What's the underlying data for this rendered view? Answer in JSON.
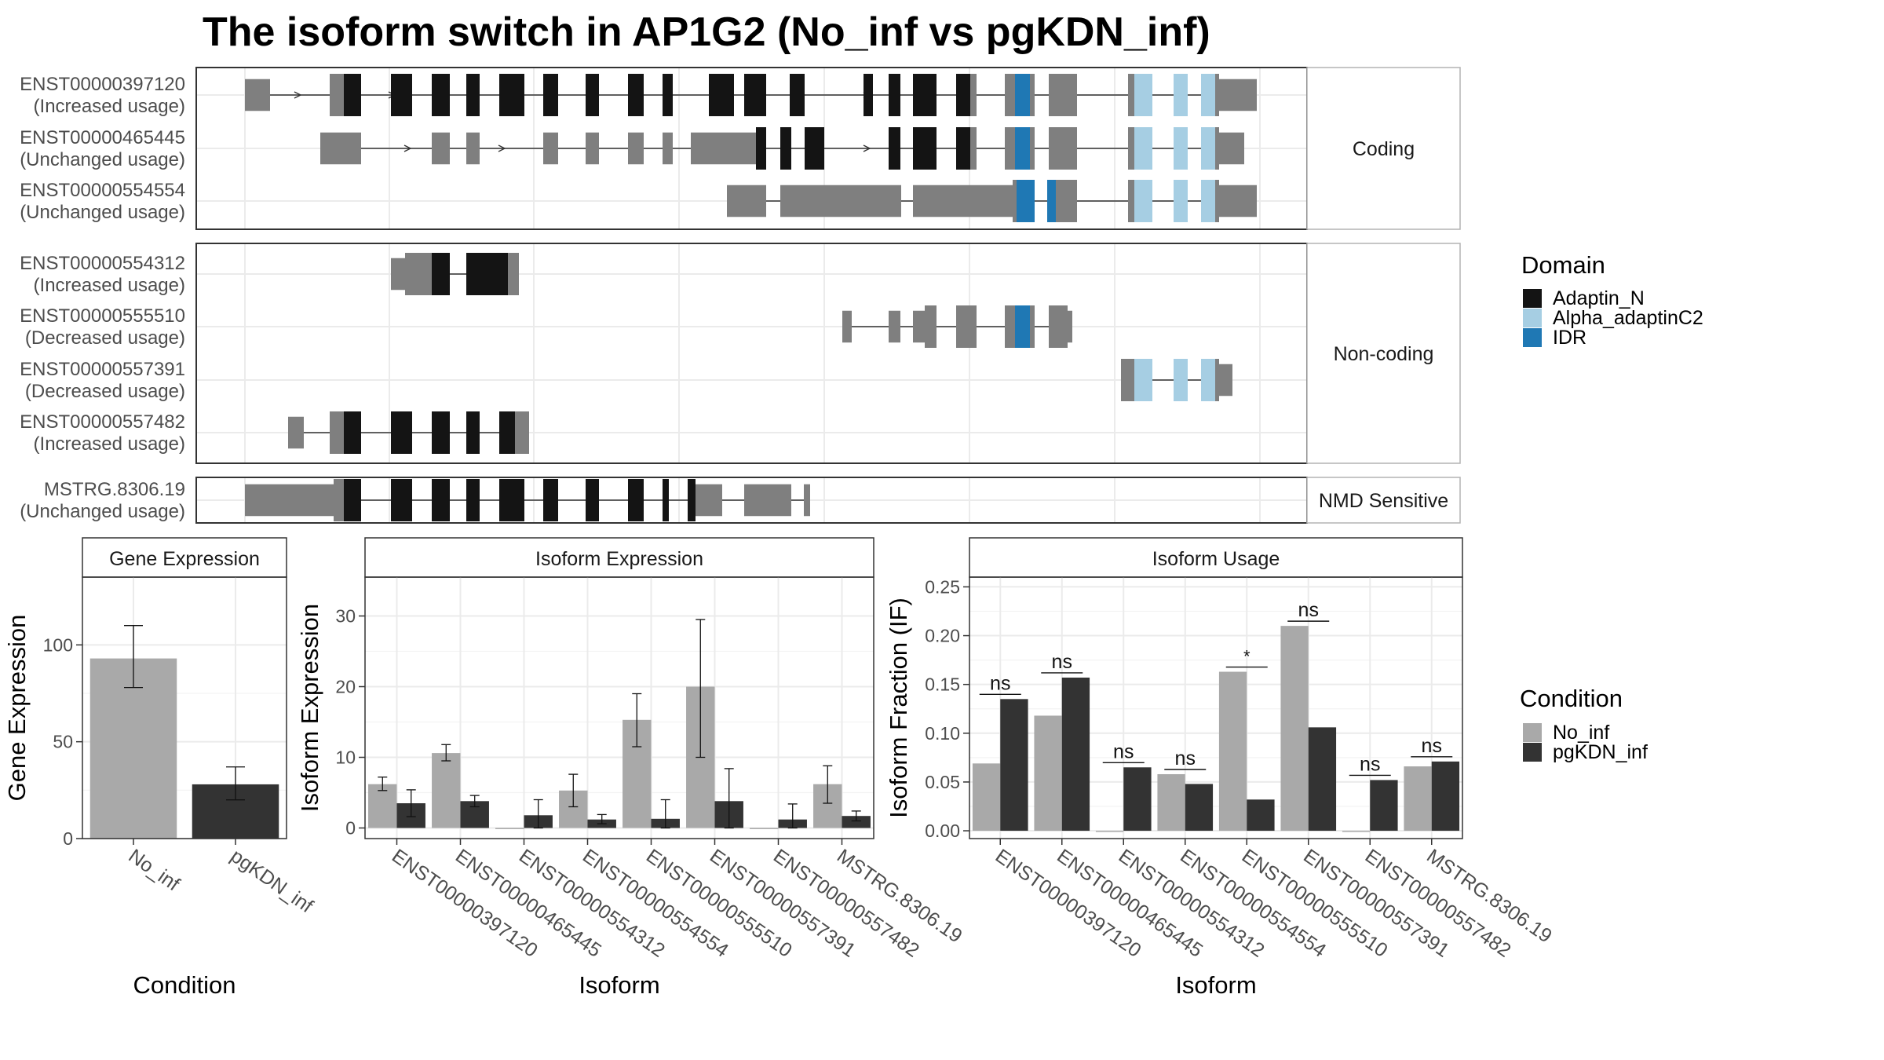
{
  "title": "The isoform switch in AP1G2 (No_inf vs pgKDN_inf)",
  "colors": {
    "adaptin_n": "#141414",
    "alpha_adaptinc2": "#a6cee3",
    "idr": "#1f78b4",
    "utr": "#7f7f7f",
    "no_inf": "#a9a9a9",
    "pgkdn_inf": "#333333"
  },
  "structure": {
    "panels": [
      {
        "label": "Coding",
        "isoforms": [
          {
            "id": "ENST00000397120",
            "usage": "(Increased usage)"
          },
          {
            "id": "ENST00000465445",
            "usage": "(Unchanged usage)"
          },
          {
            "id": "ENST00000554554",
            "usage": "(Unchanged usage)"
          }
        ]
      },
      {
        "label": "Non-coding",
        "isoforms": [
          {
            "id": "ENST00000554312",
            "usage": "(Increased usage)"
          },
          {
            "id": "ENST00000555510",
            "usage": "(Decreased usage)"
          },
          {
            "id": "ENST00000557391",
            "usage": "(Decreased usage)"
          },
          {
            "id": "ENST00000557482",
            "usage": "(Increased usage)"
          }
        ]
      },
      {
        "label": "NMD Sensitive",
        "isoforms": [
          {
            "id": "MSTRG.8306.19",
            "usage": "(Unchanged usage)"
          }
        ]
      }
    ]
  },
  "legend_domain": {
    "title": "Domain",
    "items": [
      {
        "label": "Adaptin_N",
        "color": "#141414"
      },
      {
        "label": "Alpha_adaptinC2",
        "color": "#a6cee3"
      },
      {
        "label": "IDR",
        "color": "#1f78b4"
      }
    ]
  },
  "legend_condition": {
    "title": "Condition",
    "items": [
      {
        "label": "No_inf",
        "color": "#a9a9a9"
      },
      {
        "label": "pgKDN_inf",
        "color": "#333333"
      }
    ]
  },
  "chart_data": [
    {
      "type": "bar",
      "title": "Gene Expression",
      "xlabel": "Condition",
      "ylabel": "Gene Expression",
      "categories": [
        "No_inf",
        "pgKDN_inf"
      ],
      "values": [
        93,
        28
      ],
      "error_low": [
        78,
        20
      ],
      "error_high": [
        110,
        37
      ],
      "ylim": [
        0,
        135
      ],
      "yticks": [
        0,
        50,
        100
      ]
    },
    {
      "type": "bar",
      "title": "Isoform Expression",
      "xlabel": "Isoform",
      "ylabel": "Isoform Expression",
      "categories": [
        "ENST00000397120",
        "ENST00000465445",
        "ENST00000554312",
        "ENST00000554554",
        "ENST00000555510",
        "ENST00000557391",
        "ENST00000557482",
        "MSTRG.8306.19"
      ],
      "series": [
        {
          "name": "No_inf",
          "values": [
            6.2,
            10.6,
            0,
            5.3,
            15.3,
            20.0,
            0,
            6.2
          ],
          "error_low": [
            5.3,
            9.5,
            0,
            3.0,
            11.5,
            10.0,
            0,
            3.5
          ],
          "error_high": [
            7.2,
            11.8,
            0,
            7.6,
            19.0,
            29.5,
            0,
            8.8
          ]
        },
        {
          "name": "pgKDN_inf",
          "values": [
            3.5,
            3.8,
            1.8,
            1.2,
            1.3,
            3.8,
            1.2,
            1.7
          ],
          "error_low": [
            1.6,
            3.0,
            0,
            0.6,
            0,
            0,
            0,
            1.0
          ],
          "error_high": [
            5.4,
            4.6,
            4.0,
            1.9,
            4.0,
            8.4,
            3.4,
            2.4
          ]
        }
      ],
      "ylim": [
        -1.5,
        35.5
      ],
      "yticks": [
        0,
        10,
        20,
        30
      ]
    },
    {
      "type": "bar",
      "title": "Isoform Usage",
      "xlabel": "Isoform",
      "ylabel": "Isoform Fraction (IF)",
      "categories": [
        "ENST00000397120",
        "ENST00000465445",
        "ENST00000554312",
        "ENST00000554554",
        "ENST00000555510",
        "ENST00000557391",
        "ENST00000557482",
        "MSTRG.8306.19"
      ],
      "series": [
        {
          "name": "No_inf",
          "values": [
            0.069,
            0.118,
            0,
            0.058,
            0.163,
            0.21,
            0,
            0.066
          ]
        },
        {
          "name": "pgKDN_inf",
          "values": [
            0.135,
            0.157,
            0.065,
            0.048,
            0.032,
            0.106,
            0.052,
            0.071
          ]
        }
      ],
      "significance": [
        "ns",
        "ns",
        "ns",
        "ns",
        "*",
        "ns",
        "ns",
        "ns"
      ],
      "ylim": [
        -0.008,
        0.26
      ],
      "yticks": [
        0.0,
        0.05,
        0.1,
        0.15,
        0.2,
        0.25
      ]
    }
  ]
}
